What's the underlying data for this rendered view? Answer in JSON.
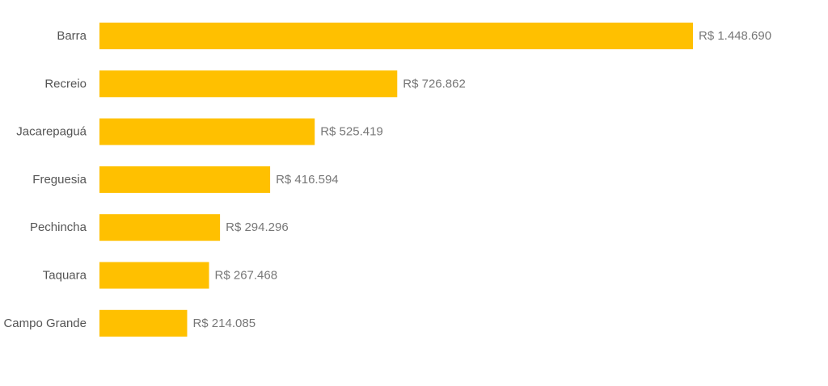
{
  "chart_data": {
    "type": "bar",
    "orientation": "horizontal",
    "title": "",
    "xlabel": "",
    "ylabel": "",
    "grid": false,
    "legend": "none",
    "bar_color": "#FFC000",
    "categories": [
      "Barra",
      "Recreio",
      "Jacarepaguá",
      "Freguesia",
      "Pechincha",
      "Taquara",
      "Campo Grande"
    ],
    "values": [
      1448690,
      726862,
      525419,
      416594,
      294296,
      267468,
      214085
    ],
    "value_labels": [
      "R$ 1.448.690",
      "R$ 726.862",
      "R$ 525.419",
      "R$ 416.594",
      "R$ 294.296",
      "R$ 267.468",
      "R$ 214.085"
    ],
    "xlim": [
      0,
      1448690
    ]
  }
}
